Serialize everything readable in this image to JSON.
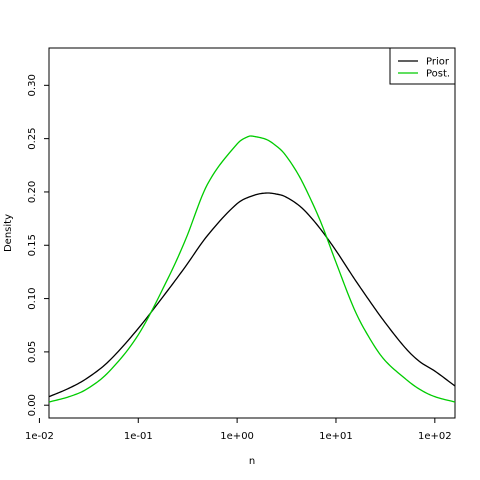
{
  "chart_data": {
    "type": "line",
    "title": "",
    "xlabel": "n",
    "ylabel": "Density",
    "x_scale": "log10",
    "xlim": [
      0.0125,
      160
    ],
    "ylim": [
      -0.012,
      0.335
    ],
    "x_ticks": [
      {
        "value": 0.01,
        "label": "1e-02"
      },
      {
        "value": 0.1,
        "label": "1e-01"
      },
      {
        "value": 1,
        "label": "1e+00"
      },
      {
        "value": 10,
        "label": "1e+01"
      },
      {
        "value": 100,
        "label": "1e+02"
      }
    ],
    "y_ticks": [
      {
        "value": 0.0,
        "label": "0.00"
      },
      {
        "value": 0.05,
        "label": "0.05"
      },
      {
        "value": 0.1,
        "label": "0.10"
      },
      {
        "value": 0.15,
        "label": "0.15"
      },
      {
        "value": 0.2,
        "label": "0.20"
      },
      {
        "value": 0.25,
        "label": "0.25"
      },
      {
        "value": 0.3,
        "label": "0.30"
      }
    ],
    "grid": false,
    "legend_position": "top-right",
    "series": [
      {
        "name": "Prior",
        "color": "#000000",
        "x": [
          0.0125,
          0.02,
          0.03,
          0.05,
          0.1,
          0.2,
          0.3,
          0.5,
          1,
          1.5,
          2,
          2.5,
          3,
          4,
          5,
          7,
          10,
          15,
          20,
          30,
          50,
          70,
          100,
          160
        ],
        "y": [
          0.008,
          0.016,
          0.025,
          0.041,
          0.072,
          0.108,
          0.13,
          0.159,
          0.189,
          0.197,
          0.199,
          0.198,
          0.196,
          0.189,
          0.181,
          0.165,
          0.145,
          0.12,
          0.103,
          0.08,
          0.054,
          0.041,
          0.032,
          0.018
        ]
      },
      {
        "name": "Post.",
        "color": "#00cc00",
        "x": [
          0.0125,
          0.02,
          0.03,
          0.05,
          0.1,
          0.2,
          0.3,
          0.5,
          1,
          1.3,
          1.5,
          2,
          2.5,
          3,
          4,
          5,
          7,
          10,
          15,
          20,
          30,
          50,
          70,
          100,
          160
        ],
        "y": [
          0.003,
          0.008,
          0.015,
          0.031,
          0.066,
          0.119,
          0.155,
          0.207,
          0.245,
          0.252,
          0.252,
          0.249,
          0.243,
          0.236,
          0.219,
          0.202,
          0.172,
          0.134,
          0.092,
          0.069,
          0.044,
          0.025,
          0.015,
          0.008,
          0.003
        ]
      }
    ]
  }
}
